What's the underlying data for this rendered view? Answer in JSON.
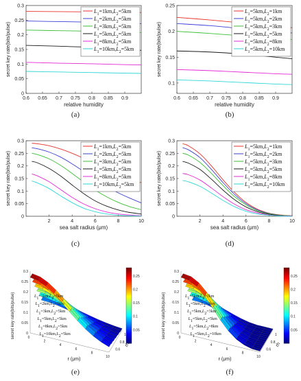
{
  "chart_data": [
    {
      "panel": "(a)",
      "type": "line",
      "xlabel": "relative humidity",
      "ylabel": "secret key rate(bits/pulse)",
      "xlim": [
        0.6,
        0.95
      ],
      "ylim": [
        0,
        0.3
      ],
      "xticks": [
        "0.6",
        "0.65",
        "0.7",
        "0.75",
        "0.8",
        "0.85",
        "0.9"
      ],
      "yticks": [
        "0",
        "0.05",
        "0.1",
        "0.15",
        "0.2",
        "0.25",
        "0.3"
      ],
      "grid": false,
      "legend_position": "top-right",
      "x": [
        0.6,
        0.7,
        0.8,
        0.9,
        0.95
      ],
      "series": [
        {
          "name": "L1=1km,L2=5km",
          "color": "#e8322a",
          "values": [
            0.28,
            0.279,
            0.278,
            0.277,
            0.276
          ]
        },
        {
          "name": "L1=2km,L2=5km",
          "color": "#3a3fd6",
          "values": [
            0.247,
            0.245,
            0.243,
            0.24,
            0.238
          ]
        },
        {
          "name": "L1=3km,L2=5km",
          "color": "#3bbf35",
          "values": [
            0.216,
            0.214,
            0.212,
            0.209,
            0.207
          ]
        },
        {
          "name": "L1=5km,L2=5km",
          "color": "#1a1a1a",
          "values": [
            0.164,
            0.161,
            0.157,
            0.15,
            0.147
          ]
        },
        {
          "name": "L1=8km,L2=5km",
          "color": "#e228d8",
          "values": [
            0.106,
            0.103,
            0.101,
            0.098,
            0.097
          ]
        },
        {
          "name": "L1=10km,L2=5km",
          "color": "#2fd6d6",
          "values": [
            0.075,
            0.073,
            0.071,
            0.069,
            0.068
          ]
        }
      ],
      "caption": "(a)"
    },
    {
      "panel": "(b)",
      "type": "line",
      "xlabel": "relative humidity",
      "ylabel": "secret key rate(bits/pulse)",
      "xlim": [
        0.6,
        0.95
      ],
      "ylim": [
        0.08,
        0.25
      ],
      "xticks": [
        "0.6",
        "0.65",
        "0.7",
        "0.75",
        "0.8",
        "0.85",
        "0.9"
      ],
      "yticks": [
        "0.1",
        "0.15",
        "0.2",
        "0.25"
      ],
      "grid": false,
      "legend_position": "top-right",
      "x": [
        0.6,
        0.7,
        0.8,
        0.9,
        0.95
      ],
      "series": [
        {
          "name": "L1=5km,L2=1km",
          "color": "#e8322a",
          "values": [
            0.227,
            0.222,
            0.216,
            0.21,
            0.207
          ]
        },
        {
          "name": "L1=5km,L2=2km",
          "color": "#3a3fd6",
          "values": [
            0.215,
            0.211,
            0.205,
            0.199,
            0.197
          ]
        },
        {
          "name": "L1=5km,L2=3km",
          "color": "#3bbf35",
          "values": [
            0.2,
            0.196,
            0.191,
            0.186,
            0.184
          ]
        },
        {
          "name": "L1=5km,L2=5km",
          "color": "#1a1a1a",
          "values": [
            0.162,
            0.16,
            0.156,
            0.15,
            0.147
          ]
        },
        {
          "name": "L1=5km,L2=8km",
          "color": "#e228d8",
          "values": [
            0.126,
            0.124,
            0.121,
            0.118,
            0.117
          ]
        },
        {
          "name": "L1=5km,L2=10km",
          "color": "#2fd6d6",
          "values": [
            0.106,
            0.104,
            0.101,
            0.098,
            0.097
          ]
        }
      ],
      "caption": "(b)"
    },
    {
      "panel": "(c)",
      "type": "line",
      "xlabel": "sea salt radius (μm)",
      "ylabel": "secret key rate(bits/pulse)",
      "xlim": [
        0,
        10
      ],
      "ylim": [
        0,
        0.3
      ],
      "xticks": [
        "2",
        "4",
        "6",
        "8",
        "10"
      ],
      "yticks": [
        "0",
        "0.05",
        "0.1",
        "0.15",
        "0.2",
        "0.25",
        "0.3"
      ],
      "grid": false,
      "legend_position": "top-right",
      "x": [
        0.5,
        1,
        2,
        3,
        4,
        5,
        6,
        7,
        8,
        9,
        10
      ],
      "series": [
        {
          "name": "L1=1km,L2=5km",
          "color": "#e8322a",
          "values": [
            0.29,
            0.288,
            0.28,
            0.267,
            0.25,
            0.23,
            0.208,
            0.188,
            0.168,
            0.15,
            0.133
          ]
        },
        {
          "name": "L1=2km,L2=5km",
          "color": "#3a3fd6",
          "values": [
            0.272,
            0.268,
            0.255,
            0.235,
            0.208,
            0.178,
            0.147,
            0.118,
            0.093,
            0.072,
            0.053
          ]
        },
        {
          "name": "L1=3km,L2=5km",
          "color": "#3bbf35",
          "values": [
            0.25,
            0.245,
            0.228,
            0.202,
            0.17,
            0.136,
            0.104,
            0.077,
            0.055,
            0.038,
            0.026
          ]
        },
        {
          "name": "L1=5km,L2=5km",
          "color": "#1a1a1a",
          "values": [
            0.218,
            0.212,
            0.19,
            0.16,
            0.124,
            0.09,
            0.061,
            0.04,
            0.025,
            0.015,
            0.009
          ]
        },
        {
          "name": "L1=8km,L2=5km",
          "color": "#e228d8",
          "values": [
            0.168,
            0.16,
            0.137,
            0.106,
            0.075,
            0.049,
            0.03,
            0.017,
            0.009,
            0.005,
            0.002
          ]
        },
        {
          "name": "L1=10km,L2=5km",
          "color": "#2fd6d6",
          "values": [
            0.14,
            0.132,
            0.11,
            0.081,
            0.054,
            0.032,
            0.018,
            0.009,
            0.004,
            0.002,
            0.001
          ]
        }
      ],
      "caption": "(c)"
    },
    {
      "panel": "(d)",
      "type": "line",
      "xlabel": "sea salt radius (μm)",
      "ylabel": "secret key rate(bits/pulse)",
      "xlim": [
        0,
        10
      ],
      "ylim": [
        0,
        0.3
      ],
      "xticks": [
        "2",
        "4",
        "6",
        "8",
        "10"
      ],
      "yticks": [
        "0",
        "0.05",
        "0.1",
        "0.15",
        "0.2",
        "0.25",
        "0.3"
      ],
      "grid": false,
      "legend_position": "top-right",
      "x": [
        0.5,
        1,
        2,
        3,
        4,
        5,
        6,
        7,
        8,
        9,
        10
      ],
      "series": [
        {
          "name": "L1=5km,L2=1km",
          "color": "#e8322a",
          "values": [
            0.288,
            0.28,
            0.248,
            0.2,
            0.145,
            0.095,
            0.055,
            0.028,
            0.012,
            0.005,
            0.002
          ]
        },
        {
          "name": "L1=5km,L2=2km",
          "color": "#3a3fd6",
          "values": [
            0.272,
            0.264,
            0.233,
            0.186,
            0.134,
            0.087,
            0.05,
            0.025,
            0.011,
            0.004,
            0.001
          ]
        },
        {
          "name": "L1=5km,L2=3km",
          "color": "#3bbf35",
          "values": [
            0.25,
            0.243,
            0.214,
            0.17,
            0.122,
            0.078,
            0.045,
            0.022,
            0.01,
            0.004,
            0.001
          ]
        },
        {
          "name": "L1=5km,L2=5km",
          "color": "#1a1a1a",
          "values": [
            0.218,
            0.211,
            0.186,
            0.147,
            0.104,
            0.066,
            0.037,
            0.018,
            0.008,
            0.003,
            0.001
          ]
        },
        {
          "name": "L1=5km,L2=8km",
          "color": "#e228d8",
          "values": [
            0.17,
            0.165,
            0.144,
            0.112,
            0.078,
            0.048,
            0.026,
            0.013,
            0.005,
            0.002,
            0.001
          ]
        },
        {
          "name": "L1=5km,L2=10km",
          "color": "#2fd6d6",
          "values": [
            0.142,
            0.137,
            0.119,
            0.092,
            0.063,
            0.038,
            0.02,
            0.009,
            0.004,
            0.001,
            0.0
          ]
        }
      ],
      "caption": "(d)"
    },
    {
      "panel": "(e)",
      "type": "surface3d",
      "xlabel": "r (μm)",
      "ylabel": "secret key rate(bits/pulse)",
      "zlabel": "rh",
      "xticks": [
        "0",
        "2",
        "4",
        "6",
        "8",
        "10"
      ],
      "yticks": [
        "0.6",
        "0.8",
        "1"
      ],
      "zticks": [
        "0",
        "0.05",
        "0.1",
        "0.15",
        "0.2",
        "0.25",
        "0.3"
      ],
      "colorbar_ticks": [
        "0.05",
        "0.1",
        "0.15",
        "0.2",
        "0.25"
      ],
      "surface_labels": [
        "L1=1km,L2=5km",
        "L1=2km,L2=5km",
        "L1=3km,L2=5km",
        "L1=5km,L2=5km",
        "L1=8km,L2=5km",
        "L1=10km,L2=5km"
      ],
      "caption": "(e)"
    },
    {
      "panel": "(f)",
      "type": "surface3d",
      "xlabel": "r (μm)",
      "ylabel": "secret key rate(bits/pulse)",
      "zlabel": "rh",
      "xticks": [
        "0",
        "2",
        "4",
        "6",
        "8",
        "10"
      ],
      "yticks": [
        "0.6",
        "0.8",
        "1"
      ],
      "zticks": [
        "0",
        "0.05",
        "0.1",
        "0.15",
        "0.2",
        "0.25",
        "0.3"
      ],
      "colorbar_ticks": [
        "0.05",
        "0.1",
        "0.15",
        "0.2",
        "0.25"
      ],
      "surface_labels": [
        "L1=5km,L2=1km",
        "L1=5km,L2=2km",
        "L1=5km,L2=3km",
        "L1=5km,L2=5km",
        "L1=5km,L2=8km",
        "L1=5km,L2=10km"
      ],
      "caption": "(f)"
    }
  ]
}
